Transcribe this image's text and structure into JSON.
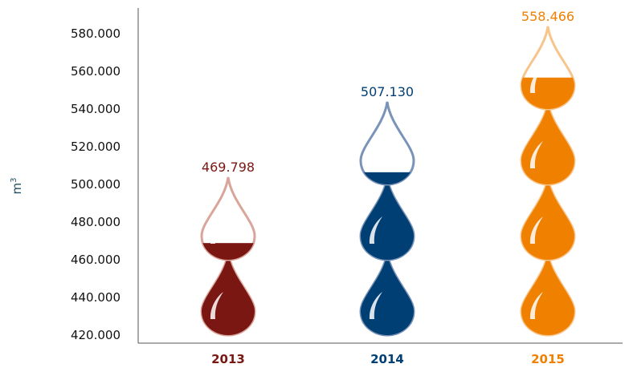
{
  "chart_data": {
    "type": "bar",
    "xlabel": "",
    "ylabel": "m",
    "ylabel_superscript": "3",
    "ylim": [
      420000,
      580000
    ],
    "yticks": [
      420000,
      440000,
      460000,
      480000,
      500000,
      520000,
      540000,
      560000,
      580000
    ],
    "ytick_labels": [
      "420.000",
      "440.000",
      "460.000",
      "480.000",
      "500.000",
      "520.000",
      "540.000",
      "560.000",
      "580.000"
    ],
    "categories": [
      "2013",
      "2014",
      "2015"
    ],
    "values": [
      469798,
      507130,
      558466
    ],
    "value_labels": [
      "469.798",
      "507.130",
      "558.466"
    ],
    "colors": [
      "#7a1713",
      "#003f74",
      "#f08000"
    ],
    "outline_colors": [
      "#d9a59a",
      "#7a93b8",
      "#f7c48a"
    ],
    "grid": false,
    "legend": "none",
    "mark": "water drops stacked, each drop representing a segment of the value"
  }
}
